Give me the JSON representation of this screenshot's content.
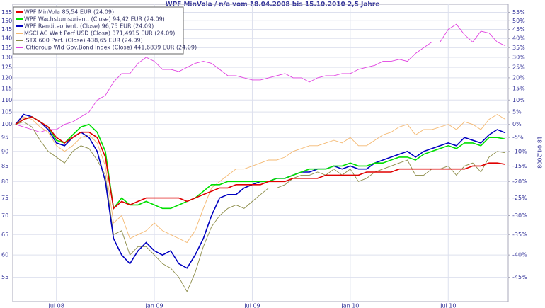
{
  "chart_data": {
    "type": "line",
    "title": "WPF MinVola / n/a vom 18.04.2008 bis 15.10.2010 2,5 Jahre",
    "side_label": "18.04.2008",
    "log_scale": true,
    "grid": true,
    "legend": "upper left",
    "categories": [
      null,
      null,
      null,
      null,
      null,
      "Jul 08",
      null,
      null,
      null,
      null,
      null,
      null,
      null,
      null,
      null,
      null,
      null,
      "Jan 09",
      null,
      null,
      null,
      null,
      null,
      null,
      null,
      null,
      null,
      null,
      null,
      "Jul 09",
      null,
      null,
      null,
      null,
      null,
      null,
      null,
      null,
      null,
      null,
      null,
      "Jan 10",
      null,
      null,
      null,
      null,
      null,
      null,
      null,
      null,
      null,
      null,
      null,
      "Jul 10",
      null,
      null,
      null,
      null,
      null,
      null,
      null
    ],
    "ylim": [
      50,
      160
    ],
    "yticks": [
      55,
      60,
      65,
      70,
      75,
      80,
      85,
      90,
      95,
      100,
      105,
      110,
      115,
      120,
      125,
      130,
      135,
      140,
      145,
      150,
      155
    ],
    "y2ticks": [
      {
        "value": -45,
        "label": "-45%"
      },
      {
        "value": -40,
        "label": "-40%"
      },
      {
        "value": -35,
        "label": "-35%"
      },
      {
        "value": -30,
        "label": "-30%"
      },
      {
        "value": -25,
        "label": "-25%"
      },
      {
        "value": -20,
        "label": "-20%"
      },
      {
        "value": -15,
        "label": "-15%"
      },
      {
        "value": -10,
        "label": "-10%"
      },
      {
        "value": -5,
        "label": "-5%"
      },
      {
        "value": 0,
        "label": "0%"
      },
      {
        "value": 5,
        "label": "5%"
      },
      {
        "value": 10,
        "label": "10%"
      },
      {
        "value": 15,
        "label": "15%"
      },
      {
        "value": 20,
        "label": "20%"
      },
      {
        "value": 25,
        "label": "25%"
      },
      {
        "value": 30,
        "label": "30%"
      },
      {
        "value": 35,
        "label": "35%"
      },
      {
        "value": 40,
        "label": "40%"
      },
      {
        "value": 45,
        "label": "45%"
      },
      {
        "value": 50,
        "label": "50%"
      },
      {
        "value": 55,
        "label": "55%"
      }
    ],
    "series": [
      {
        "name": "WPF MinVola 85,54 EUR (24.09)",
        "color": "#e00000",
        "values": [
          100,
          102,
          103,
          101,
          99,
          95,
          93,
          95,
          97,
          97,
          95,
          88,
          72,
          74,
          73,
          74,
          75,
          75,
          75,
          75,
          75,
          74,
          75,
          76,
          77,
          78,
          78,
          79,
          79,
          79,
          79,
          80,
          80,
          80,
          81,
          81,
          81,
          81,
          82,
          82,
          82,
          82,
          82,
          83,
          83,
          83,
          83,
          84,
          84,
          84,
          84,
          84,
          84,
          84,
          84,
          84,
          85,
          85,
          86,
          86,
          85.54
        ]
      },
      {
        "name": "WPF Wachstumsorient. (Close) 94,42 EUR (24.09)",
        "color": "#00e000",
        "values": [
          100,
          102,
          103,
          101,
          99,
          94,
          93,
          96,
          99,
          100,
          97,
          90,
          72,
          75,
          73,
          73,
          74,
          73,
          72,
          72,
          73,
          74,
          75,
          77,
          79,
          79,
          80,
          80,
          80,
          80,
          80,
          80,
          81,
          81,
          82,
          83,
          84,
          84,
          84,
          85,
          85,
          86,
          85,
          85,
          86,
          86,
          87,
          88,
          88,
          87,
          89,
          90,
          91,
          92,
          91,
          93,
          93,
          92,
          95,
          95,
          94.42
        ]
      },
      {
        "name": "WPF Renditeorient. (Close) 96,75 EUR (24.09)",
        "color": "#0000c0",
        "values": [
          100,
          104,
          103,
          101,
          98,
          93,
          92,
          95,
          97,
          95,
          90,
          80,
          64,
          60,
          58,
          61,
          63,
          61,
          60,
          61,
          58,
          57,
          60,
          64,
          70,
          75,
          76,
          76,
          78,
          79,
          80,
          80,
          81,
          81,
          82,
          83,
          83,
          84,
          84,
          85,
          84,
          85,
          84,
          84,
          86,
          87,
          88,
          89,
          90,
          88,
          90,
          91,
          92,
          93,
          92,
          95,
          94,
          93,
          96,
          98,
          96.75
        ]
      },
      {
        "name": "MSCI AC Welt Perf USD (Close) 371,4915 EUR (24.09)",
        "color": "#f4b870",
        "values": [
          100,
          103,
          102,
          99,
          97,
          92,
          90,
          92,
          95,
          96,
          93,
          85,
          68,
          70,
          64,
          65,
          66,
          68,
          66,
          65,
          64,
          63,
          66,
          72,
          78,
          80,
          82,
          84,
          84,
          85,
          86,
          87,
          87,
          88,
          90,
          91,
          92,
          92,
          93,
          94,
          93,
          95,
          92,
          92,
          94,
          96,
          97,
          99,
          100,
          96,
          98,
          98,
          99,
          100,
          98,
          101,
          100,
          98,
          102,
          104,
          102
        ]
      },
      {
        "name": ".STX 600 Perf. (Close) 438,65 EUR (24.09)",
        "color": "#8c8c48",
        "values": [
          100,
          101,
          99,
          94,
          90,
          88,
          86,
          90,
          92,
          91,
          87,
          82,
          65,
          66,
          60,
          62,
          62,
          60,
          58,
          57,
          55,
          52,
          56,
          62,
          67,
          70,
          72,
          73,
          72,
          74,
          76,
          78,
          78,
          79,
          81,
          82,
          82,
          83,
          82,
          84,
          82,
          84,
          80,
          81,
          83,
          84,
          85,
          86,
          87,
          82,
          82,
          84,
          84,
          85,
          82,
          85,
          86,
          83,
          88,
          90,
          89.5
        ]
      },
      {
        "name": ".Citigroup Wld Gov.Bond Index (Close) 441,6839 EUR (24.09)",
        "color": "#e040e0",
        "values": [
          100,
          99,
          98,
          97,
          98,
          98,
          100,
          101,
          103,
          105,
          110,
          112,
          118,
          122,
          122,
          127,
          130,
          128,
          124,
          124,
          123,
          125,
          127,
          128,
          127,
          124,
          121,
          121,
          120,
          119,
          119,
          120,
          121,
          122,
          120,
          120,
          118,
          120,
          121,
          121,
          122,
          122,
          124,
          125,
          126,
          128,
          128,
          129,
          128,
          132,
          135,
          138,
          138,
          145,
          148,
          142,
          138,
          144,
          143,
          138,
          136
        ]
      }
    ]
  }
}
